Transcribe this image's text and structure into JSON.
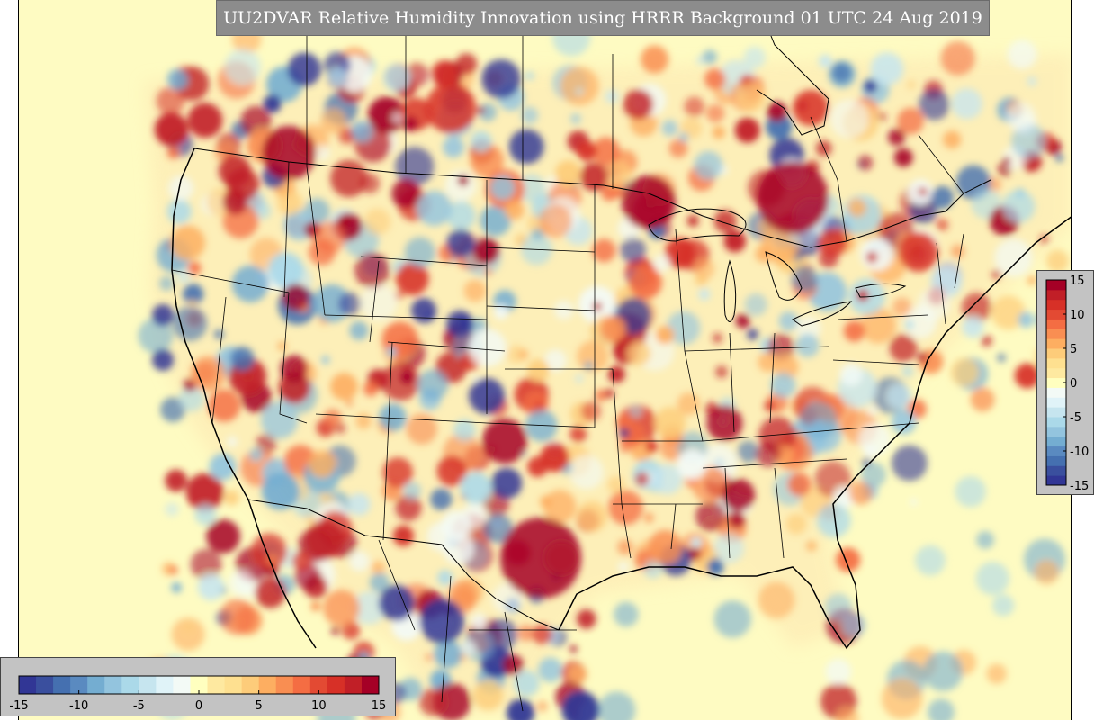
{
  "title": "UU2DVAR Relative Humidity Innovation using HRRR Background 01 UTC 24 Aug 2019",
  "colorbar": {
    "min": -15,
    "max": 15,
    "ticks": [
      "-15",
      "-10",
      "-5",
      "0",
      "5",
      "10",
      "15"
    ],
    "colors": [
      "#313695",
      "#3a4f9e",
      "#4570b0",
      "#5a8ac0",
      "#74add1",
      "#93c4de",
      "#abd9e9",
      "#c6e5ef",
      "#e0f3f8",
      "#f3faf6",
      "#ffffbf",
      "#fee9a0",
      "#fee090",
      "#fdcc7a",
      "#fdae61",
      "#f98e52",
      "#f46d43",
      "#e34a33",
      "#d73027",
      "#c11f27",
      "#a50026"
    ]
  },
  "map": {
    "background_color": "#fefbc2",
    "positive_color": "#c1121f",
    "negative_color": "#2b4c9e",
    "boundary_color": "#000000"
  }
}
